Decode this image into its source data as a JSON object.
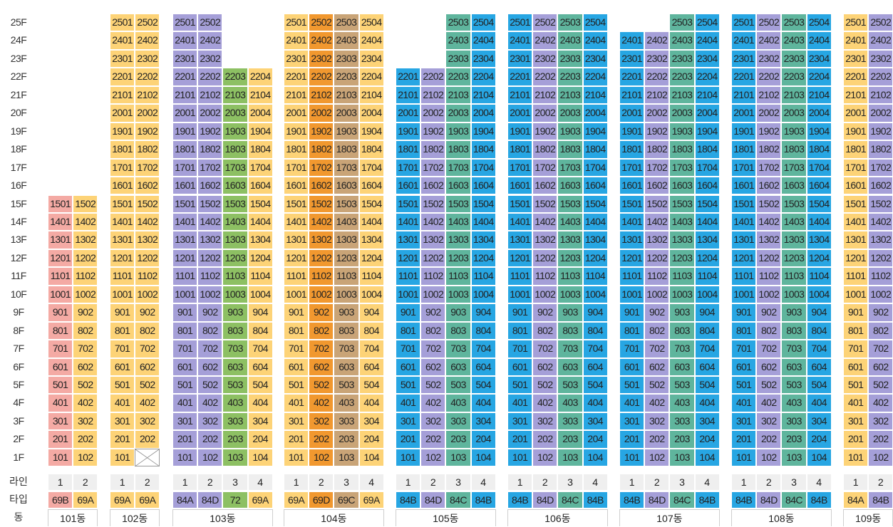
{
  "row_labels": {
    "line": "라인",
    "type": "타입",
    "building": "동"
  },
  "floors": [
    "25F",
    "24F",
    "23F",
    "22F",
    "21F",
    "20F",
    "19F",
    "18F",
    "17F",
    "16F",
    "15F",
    "14F",
    "13F",
    "12F",
    "11F",
    "10F",
    "9F",
    "8F",
    "7F",
    "6F",
    "5F",
    "4F",
    "3F",
    "2F",
    "1F"
  ],
  "colors": {
    "pink": "#f4aaa4",
    "yellow": "#fdd377",
    "purple": "#a59fd8",
    "green": "#8dc063",
    "orange": "#f1982f",
    "tan": "#c9a477",
    "teal": "#5fb59d",
    "blue": "#27a6e3",
    "blue2": "#1f8fd1"
  },
  "buildings": [
    {
      "name": "101동",
      "top_floor": 15,
      "lines": [
        "1",
        "2"
      ],
      "types": [
        "69B",
        "69A"
      ],
      "colors": [
        "pink",
        "yellow"
      ],
      "missing": []
    },
    {
      "name": "102동",
      "top_floor": 25,
      "lines": [
        "1",
        "2"
      ],
      "types": [
        "69A",
        "69A"
      ],
      "colors": [
        "yellow",
        "yellow"
      ],
      "missing": [
        "102"
      ]
    },
    {
      "name": "103동",
      "top_floor": 25,
      "lines": [
        "1",
        "2",
        "3",
        "4"
      ],
      "types": [
        "84A",
        "84D",
        "72",
        "69A"
      ],
      "colors": [
        "purple",
        "purple",
        "green",
        "yellow"
      ],
      "missing": [],
      "col_tops": [
        25,
        25,
        22,
        22
      ]
    },
    {
      "name": "104동",
      "top_floor": 25,
      "lines": [
        "1",
        "2",
        "3",
        "4"
      ],
      "types": [
        "69A",
        "69D",
        "69C",
        "69A"
      ],
      "colors": [
        "yellow",
        "orange",
        "tan",
        "yellow"
      ],
      "missing": []
    },
    {
      "name": "105동",
      "top_floor": 25,
      "lines": [
        "1",
        "2",
        "3",
        "4"
      ],
      "types": [
        "84B",
        "84D",
        "84C",
        "84B"
      ],
      "colors": [
        "blue",
        "purple",
        "teal",
        "blue"
      ],
      "missing": [],
      "col_tops": [
        22,
        22,
        25,
        25
      ]
    },
    {
      "name": "106동",
      "top_floor": 25,
      "lines": [
        "1",
        "2",
        "3",
        "4"
      ],
      "types": [
        "84B",
        "84D",
        "84C",
        "84B"
      ],
      "colors": [
        "blue",
        "purple",
        "teal",
        "blue"
      ],
      "missing": []
    },
    {
      "name": "107동",
      "top_floor": 25,
      "lines": [
        "1",
        "2",
        "3",
        "4"
      ],
      "types": [
        "84B",
        "84D",
        "84C",
        "84B"
      ],
      "colors": [
        "blue",
        "purple",
        "teal",
        "blue"
      ],
      "missing": [],
      "col_tops": [
        24,
        24,
        25,
        25
      ]
    },
    {
      "name": "108동",
      "top_floor": 25,
      "lines": [
        "1",
        "2",
        "3",
        "4"
      ],
      "types": [
        "84B",
        "84D",
        "84C",
        "84B"
      ],
      "colors": [
        "blue",
        "purple",
        "teal",
        "blue"
      ],
      "missing": []
    },
    {
      "name": "109동",
      "top_floor": 25,
      "lines": [
        "1",
        "2"
      ],
      "types": [
        "84A",
        "84B"
      ],
      "colors": [
        "yellow",
        "purple"
      ],
      "missing": []
    }
  ]
}
